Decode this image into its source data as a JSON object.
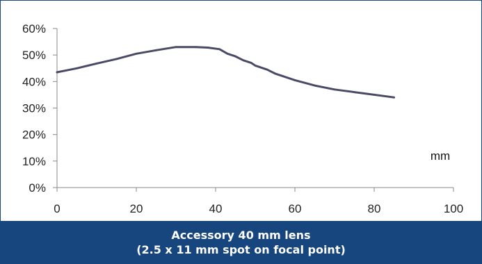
{
  "chart_data": {
    "type": "line",
    "title": "",
    "xlabel": "mm",
    "ylabel": "",
    "xlim": [
      0,
      100
    ],
    "ylim": [
      0,
      60
    ],
    "x_ticks": [
      "0",
      "20",
      "40",
      "60",
      "80",
      "100"
    ],
    "y_ticks": [
      "0%",
      "10%",
      "20%",
      "30%",
      "40%",
      "50%",
      "60%"
    ],
    "grid": false,
    "line_color": "#4a4a66",
    "series": [
      {
        "x": [
          0,
          5,
          10,
          15,
          20,
          25,
          30,
          35,
          38,
          41,
          43,
          45,
          47,
          49,
          50,
          51,
          53,
          55,
          57,
          60,
          65,
          70,
          75,
          80,
          85
        ],
        "y": [
          43.5,
          45,
          46.8,
          48.5,
          50.5,
          51.8,
          53,
          53,
          52.8,
          52.2,
          50.5,
          49.5,
          48,
          47,
          46,
          45.5,
          44.5,
          43,
          42,
          40.5,
          38.5,
          37,
          36,
          35,
          34
        ]
      }
    ]
  },
  "caption": {
    "line1": "Accessory 40 mm lens",
    "line2": "(2.5 x 11 mm spot on focal point)"
  }
}
